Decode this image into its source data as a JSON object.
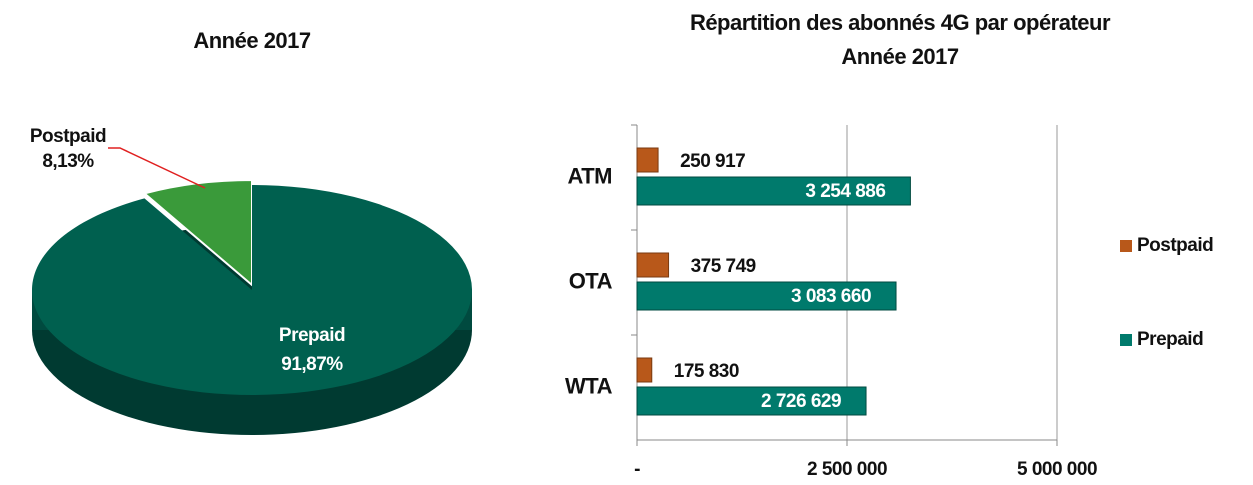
{
  "chart_data": [
    {
      "type": "pie",
      "title": "Année 2017",
      "categories": [
        "Postpaid",
        "Prepaid"
      ],
      "values": [
        8.13,
        91.87
      ],
      "value_labels": [
        "8,13%",
        "91,87%"
      ],
      "colors": [
        "#3a9a3a",
        "#00604f"
      ]
    },
    {
      "type": "hbar",
      "title": "Répartition des abonnés 4G par opérateur",
      "subtitle": "Année 2017",
      "categories": [
        "ATM",
        "OTA",
        "WTA"
      ],
      "series": [
        {
          "name": "Postpaid",
          "color": "#b8581a",
          "values": [
            250917,
            375749,
            175830
          ],
          "value_labels": [
            "250 917",
            "375 749",
            "175 830"
          ]
        },
        {
          "name": "Prepaid",
          "color": "#007a6c",
          "values": [
            3254886,
            3083660,
            2726629
          ],
          "value_labels": [
            "3 254 886",
            "3 083 660",
            "2 726 629"
          ]
        }
      ],
      "xlim": [
        0,
        5000000
      ],
      "xticks": [
        {
          "value": 0,
          "label": "-"
        },
        {
          "value": 2500000,
          "label": "2 500 000"
        },
        {
          "value": 5000000,
          "label": "5 000 000"
        }
      ],
      "grid": true,
      "legend": "right"
    }
  ]
}
